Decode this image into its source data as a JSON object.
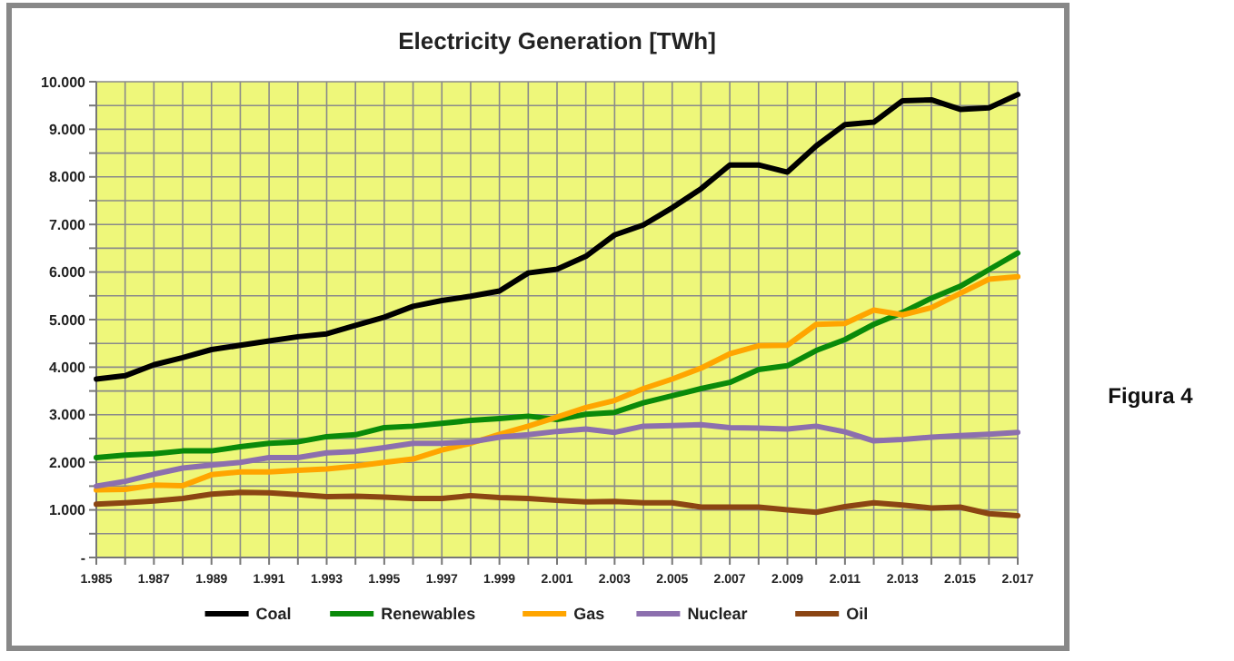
{
  "chart_data": {
    "type": "line",
    "title": "Electricity Generation [TWh]",
    "annotations": [
      "Figura 4"
    ],
    "x": [
      1985,
      1986,
      1987,
      1988,
      1989,
      1990,
      1991,
      1992,
      1993,
      1994,
      1995,
      1996,
      1997,
      1998,
      1999,
      2000,
      2001,
      2002,
      2003,
      2004,
      2005,
      2006,
      2007,
      2008,
      2009,
      2010,
      2011,
      2012,
      2013,
      2014,
      2015,
      2016,
      2017
    ],
    "series": [
      {
        "name": "Coal",
        "color": "#000000",
        "values": [
          3750,
          3820,
          4050,
          4200,
          4370,
          4460,
          4550,
          4640,
          4700,
          4880,
          5050,
          5280,
          5400,
          5490,
          5600,
          5980,
          6060,
          6330,
          6780,
          6990,
          7350,
          7750,
          8250,
          8250,
          8100,
          8650,
          9100,
          9150,
          9600,
          9620,
          9420,
          9450,
          9730
        ]
      },
      {
        "name": "Renewables",
        "color": "#0a8a0a",
        "values": [
          2100,
          2150,
          2180,
          2240,
          2240,
          2330,
          2400,
          2430,
          2540,
          2580,
          2730,
          2760,
          2820,
          2880,
          2920,
          2970,
          2900,
          3010,
          3050,
          3250,
          3400,
          3550,
          3680,
          3950,
          4030,
          4350,
          4580,
          4900,
          5150,
          5450,
          5700,
          6050,
          6400
        ]
      },
      {
        "name": "Gas",
        "color": "#ffa500",
        "values": [
          1420,
          1430,
          1520,
          1510,
          1740,
          1800,
          1800,
          1830,
          1860,
          1920,
          2000,
          2070,
          2260,
          2400,
          2590,
          2760,
          2950,
          3150,
          3300,
          3550,
          3750,
          3980,
          4280,
          4450,
          4460,
          4900,
          4920,
          5200,
          5100,
          5250,
          5550,
          5850,
          5900
        ]
      },
      {
        "name": "Nuclear",
        "color": "#8c6fae",
        "values": [
          1500,
          1600,
          1750,
          1880,
          1940,
          2000,
          2100,
          2100,
          2200,
          2230,
          2310,
          2400,
          2400,
          2430,
          2530,
          2580,
          2650,
          2700,
          2630,
          2760,
          2770,
          2790,
          2730,
          2720,
          2700,
          2760,
          2640,
          2450,
          2480,
          2530,
          2560,
          2590,
          2630
        ]
      },
      {
        "name": "Oil",
        "color": "#8b4513",
        "values": [
          1120,
          1150,
          1190,
          1240,
          1330,
          1370,
          1360,
          1320,
          1280,
          1290,
          1270,
          1240,
          1240,
          1300,
          1260,
          1240,
          1200,
          1170,
          1180,
          1150,
          1150,
          1060,
          1060,
          1060,
          1000,
          950,
          1070,
          1150,
          1100,
          1040,
          1060,
          920,
          880
        ]
      }
    ],
    "xlim": [
      1985,
      2017
    ],
    "xticks": [
      {
        "value": 1985,
        "label": "1.985"
      },
      {
        "value": 1986,
        "label": null
      },
      {
        "value": 1987,
        "label": "1.987"
      },
      {
        "value": 1988,
        "label": null
      },
      {
        "value": 1989,
        "label": "1.989"
      },
      {
        "value": 1990,
        "label": null
      },
      {
        "value": 1991,
        "label": "1.991"
      },
      {
        "value": 1992,
        "label": null
      },
      {
        "value": 1993,
        "label": "1.993"
      },
      {
        "value": 1994,
        "label": null
      },
      {
        "value": 1995,
        "label": "1.995"
      },
      {
        "value": 1996,
        "label": null
      },
      {
        "value": 1997,
        "label": "1.997"
      },
      {
        "value": 1998,
        "label": null
      },
      {
        "value": 1999,
        "label": "1.999"
      },
      {
        "value": 2000,
        "label": null
      },
      {
        "value": 2001,
        "label": "2.001"
      },
      {
        "value": 2002,
        "label": null
      },
      {
        "value": 2003,
        "label": "2.003"
      },
      {
        "value": 2004,
        "label": null
      },
      {
        "value": 2005,
        "label": "2.005"
      },
      {
        "value": 2006,
        "label": null
      },
      {
        "value": 2007,
        "label": "2.007"
      },
      {
        "value": 2008,
        "label": null
      },
      {
        "value": 2009,
        "label": "2.009"
      },
      {
        "value": 2010,
        "label": null
      },
      {
        "value": 2011,
        "label": "2.011"
      },
      {
        "value": 2012,
        "label": null
      },
      {
        "value": 2013,
        "label": "2.013"
      },
      {
        "value": 2014,
        "label": null
      },
      {
        "value": 2015,
        "label": "2.015"
      },
      {
        "value": 2016,
        "label": null
      },
      {
        "value": 2017,
        "label": "2.017"
      }
    ],
    "ylim": [
      0,
      10000
    ],
    "yticks": [
      {
        "value": 0,
        "label": "-"
      },
      {
        "value": 500,
        "label": null
      },
      {
        "value": 1000,
        "label": "1.000"
      },
      {
        "value": 1500,
        "label": null
      },
      {
        "value": 2000,
        "label": "2.000"
      },
      {
        "value": 2500,
        "label": null
      },
      {
        "value": 3000,
        "label": "3.000"
      },
      {
        "value": 3500,
        "label": null
      },
      {
        "value": 4000,
        "label": "4.000"
      },
      {
        "value": 4500,
        "label": null
      },
      {
        "value": 5000,
        "label": "5.000"
      },
      {
        "value": 5500,
        "label": null
      },
      {
        "value": 6000,
        "label": "6.000"
      },
      {
        "value": 6500,
        "label": null
      },
      {
        "value": 7000,
        "label": "7.000"
      },
      {
        "value": 7500,
        "label": null
      },
      {
        "value": 8000,
        "label": "8.000"
      },
      {
        "value": 8500,
        "label": null
      },
      {
        "value": 9000,
        "label": "9.000"
      },
      {
        "value": 9500,
        "label": null
      },
      {
        "value": 10000,
        "label": "10.000"
      }
    ],
    "grid": true,
    "legend": "bottom",
    "marker": "none",
    "line_style": "solid"
  }
}
